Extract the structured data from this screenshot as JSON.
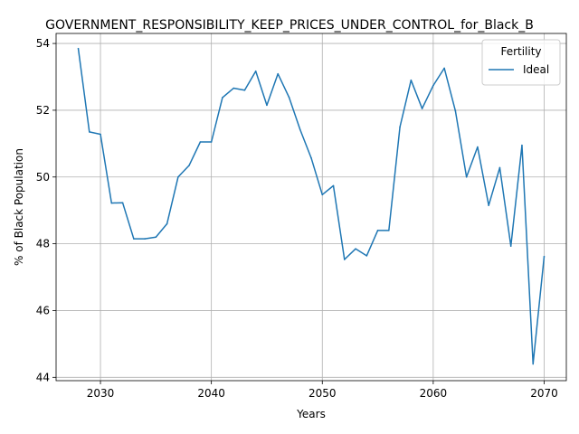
{
  "chart_data": {
    "type": "line",
    "title": "GOVERNMENT_RESPONSIBILITY_KEEP_PRICES_UNDER_CONTROL_for_Black_B",
    "xlabel": "Years",
    "ylabel": "% of Black Population",
    "xlim": [
      2026,
      2072
    ],
    "ylim": [
      43.9,
      54.3
    ],
    "xticks": [
      2030,
      2040,
      2050,
      2060,
      2070
    ],
    "yticks": [
      44,
      46,
      48,
      50,
      52,
      54
    ],
    "grid": true,
    "legend": {
      "title": "Fertility",
      "placement": "top-right"
    },
    "x": [
      2028,
      2029,
      2030,
      2031,
      2032,
      2033,
      2034,
      2035,
      2036,
      2037,
      2038,
      2039,
      2040,
      2041,
      2042,
      2043,
      2044,
      2045,
      2046,
      2047,
      2048,
      2049,
      2050,
      2051,
      2052,
      2053,
      2054,
      2055,
      2056,
      2057,
      2058,
      2059,
      2060,
      2061,
      2062,
      2063,
      2064,
      2065,
      2066,
      2067,
      2068,
      2069,
      2070
    ],
    "series": [
      {
        "name": "Ideal",
        "color": "#1f77b4",
        "values": [
          53.85,
          51.35,
          51.28,
          49.22,
          49.23,
          48.15,
          48.15,
          48.2,
          48.6,
          50.0,
          50.35,
          51.05,
          51.05,
          52.38,
          52.66,
          52.6,
          53.17,
          52.15,
          53.09,
          52.39,
          51.42,
          50.57,
          49.47,
          49.74,
          47.53,
          47.85,
          47.64,
          48.4,
          48.4,
          51.5,
          52.9,
          52.05,
          52.74,
          53.26,
          51.98,
          50.0,
          50.9,
          49.15,
          50.28,
          47.93,
          50.95,
          44.4,
          47.62
        ]
      }
    ]
  }
}
